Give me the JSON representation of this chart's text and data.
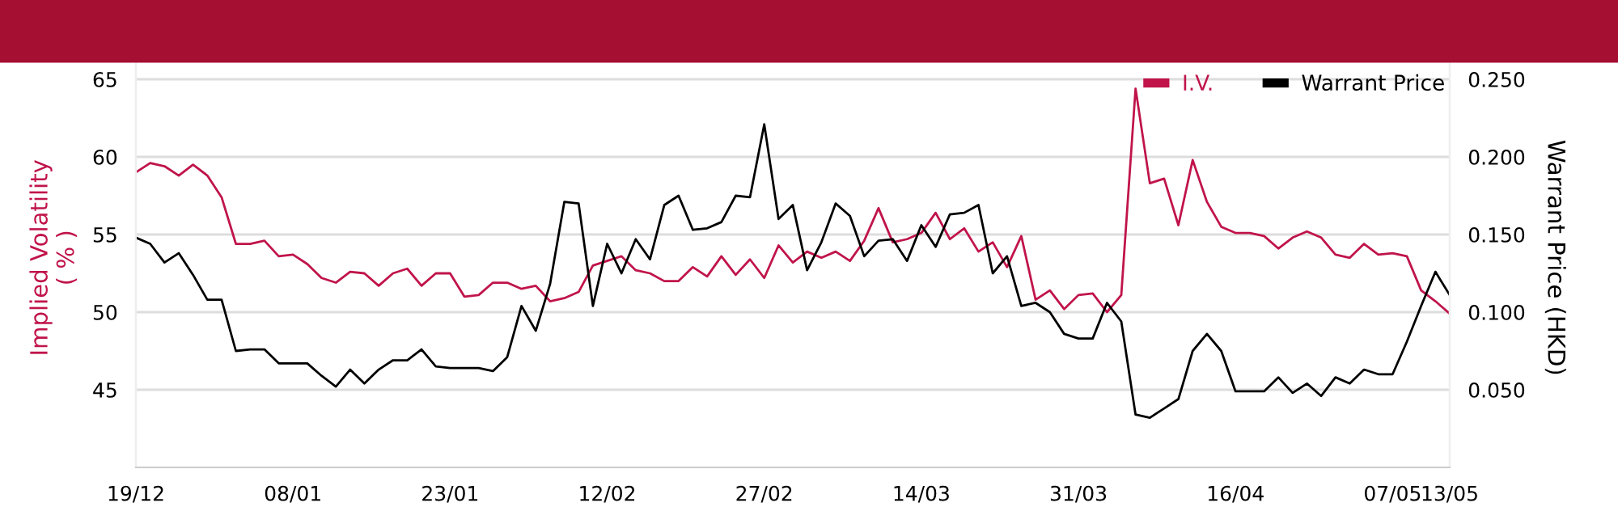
{
  "chart_data": {
    "type": "line",
    "categories": [
      "19/12",
      null,
      null,
      null,
      null,
      null,
      null,
      null,
      null,
      null,
      null,
      "08/01",
      null,
      null,
      null,
      null,
      null,
      null,
      null,
      null,
      null,
      null,
      "23/01",
      null,
      null,
      null,
      null,
      null,
      null,
      null,
      null,
      null,
      null,
      "12/02",
      null,
      null,
      null,
      null,
      null,
      null,
      null,
      null,
      null,
      null,
      "27/02",
      null,
      null,
      null,
      null,
      null,
      null,
      null,
      null,
      null,
      null,
      "14/03",
      null,
      null,
      null,
      null,
      null,
      null,
      null,
      null,
      null,
      null,
      "31/03",
      null,
      null,
      null,
      null,
      null,
      null,
      null,
      null,
      null,
      null,
      "16/04",
      null,
      null,
      null,
      null,
      null,
      null,
      null,
      null,
      null,
      null,
      "07/05",
      null,
      null,
      null,
      "13/05"
    ],
    "series": [
      {
        "name": "I.V.",
        "color": "#c0144a",
        "values": [
          59.0,
          59.6,
          59.4,
          58.8,
          59.5,
          58.8,
          57.4,
          54.4,
          54.4,
          54.6,
          53.6,
          53.7,
          53.1,
          52.2,
          51.9,
          52.6,
          52.5,
          51.7,
          52.5,
          52.8,
          51.7,
          52.5,
          52.5,
          51.0,
          51.1,
          51.9,
          51.9,
          51.5,
          51.7,
          50.7,
          50.9,
          51.3,
          53.0,
          53.3,
          53.6,
          52.7,
          52.5,
          52.0,
          52.0,
          52.9,
          52.3,
          53.6,
          52.4,
          53.4,
          52.2,
          54.3,
          53.2,
          53.9,
          53.5,
          53.9,
          53.3,
          54.6,
          56.7,
          54.5,
          54.7,
          55.1,
          56.4,
          54.7,
          55.4,
          53.9,
          54.5,
          52.9,
          54.9,
          50.8,
          51.4,
          50.2,
          51.1,
          51.2,
          50.0,
          51.1,
          64.4,
          58.3,
          58.6,
          55.6,
          59.8,
          57.1,
          55.5,
          55.1,
          55.1,
          54.9,
          54.1,
          54.8,
          55.2,
          54.8,
          53.7,
          53.5,
          54.4,
          53.7,
          53.8,
          53.6,
          51.4,
          50.7,
          49.9
        ]
      },
      {
        "name": "Warrant Price",
        "color": "#000000",
        "axis": "y2",
        "values": [
          0.148,
          0.144,
          0.132,
          0.138,
          0.124,
          0.108,
          0.108,
          0.075,
          0.076,
          0.076,
          0.067,
          0.067,
          0.067,
          0.059,
          0.052,
          0.063,
          0.054,
          0.063,
          0.069,
          0.069,
          0.076,
          0.065,
          0.064,
          0.064,
          0.064,
          0.062,
          0.071,
          0.104,
          0.088,
          0.118,
          0.171,
          0.17,
          0.104,
          0.144,
          0.125,
          0.147,
          0.134,
          0.169,
          0.175,
          0.153,
          0.154,
          0.158,
          0.175,
          0.174,
          0.221,
          0.16,
          0.169,
          0.127,
          0.145,
          0.17,
          0.162,
          0.136,
          0.146,
          0.147,
          0.133,
          0.156,
          0.142,
          0.163,
          0.164,
          0.169,
          0.125,
          0.136,
          0.104,
          0.106,
          0.1,
          0.086,
          0.083,
          0.083,
          0.106,
          0.094,
          0.034,
          0.032,
          0.038,
          0.044,
          0.075,
          0.086,
          0.075,
          0.049,
          0.049,
          0.049,
          0.058,
          0.048,
          0.054,
          0.046,
          0.058,
          0.054,
          0.063,
          0.06,
          0.06,
          0.081,
          0.104,
          0.126,
          0.111
        ]
      }
    ],
    "ylabel": "Implied Volatility\n( % )",
    "y2label": "Warrant Price (HKD)",
    "ylim": [
      40,
      67
    ],
    "yticks": [
      45,
      50,
      55,
      60,
      65
    ],
    "y2lim": [
      0,
      0.27
    ],
    "y2ticks": [
      {
        "value": 0.05,
        "label": "0.050"
      },
      {
        "value": 0.1,
        "label": "0.100"
      },
      {
        "value": 0.15,
        "label": "0.150"
      },
      {
        "value": 0.2,
        "label": "0.200"
      },
      {
        "value": 0.25,
        "label": "0.250"
      }
    ],
    "grid": "y",
    "legend": "top right",
    "marker": "none",
    "line_style": "solid"
  }
}
